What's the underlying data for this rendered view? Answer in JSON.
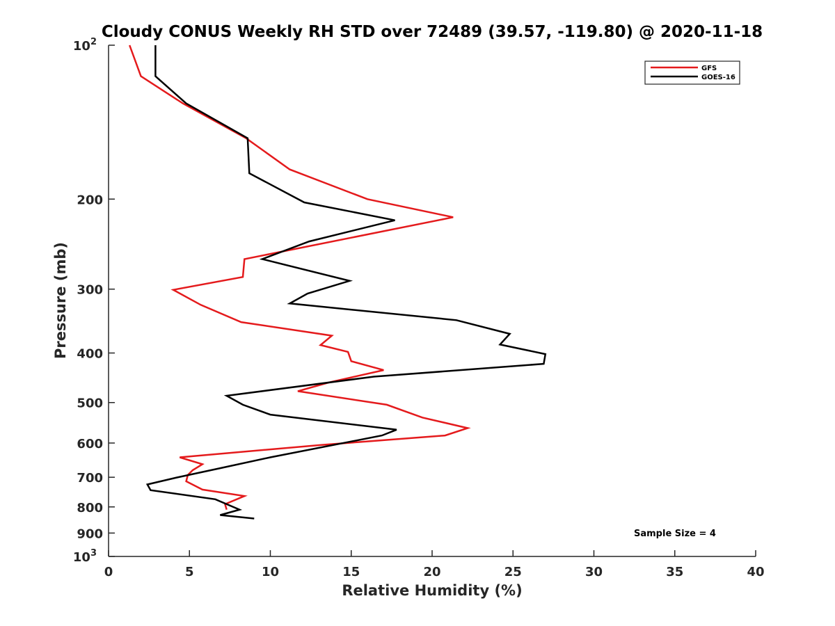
{
  "chart_data": {
    "type": "line",
    "title": "Cloudy CONUS Weekly RH STD over 72489 (39.57, -119.80) @ 2020-11-18",
    "xlabel": "Relative Humidity (%)",
    "ylabel": "Pressure (mb)",
    "xlim": [
      0,
      40
    ],
    "ylim": [
      100,
      1000
    ],
    "y_scale": "log",
    "y_reversed": true,
    "grid": false,
    "legend_position": "top-right",
    "x_ticks": [
      "0",
      "5",
      "10",
      "15",
      "20",
      "25",
      "30",
      "35",
      "40"
    ],
    "y_ticks": [
      {
        "value": 100,
        "base": "10",
        "exp": "2"
      },
      {
        "value": 200,
        "label": "200"
      },
      {
        "value": 300,
        "label": "300"
      },
      {
        "value": 400,
        "label": "400"
      },
      {
        "value": 500,
        "label": "500"
      },
      {
        "value": 600,
        "label": "600"
      },
      {
        "value": 700,
        "label": "700"
      },
      {
        "value": 800,
        "label": "800"
      },
      {
        "value": 900,
        "label": "900"
      },
      {
        "value": 1000,
        "base": "10",
        "exp": "3"
      }
    ],
    "series": [
      {
        "name": "GFS",
        "color": "#e41a1c",
        "points": [
          [
            1.3,
            100
          ],
          [
            2.0,
            115
          ],
          [
            4.6,
            130
          ],
          [
            8.5,
            152
          ],
          [
            11.2,
            175
          ],
          [
            16.0,
            200
          ],
          [
            21.3,
            217
          ],
          [
            8.4,
            262
          ],
          [
            8.3,
            284
          ],
          [
            4.0,
            301
          ],
          [
            5.7,
            322
          ],
          [
            8.2,
            348
          ],
          [
            13.8,
            370
          ],
          [
            13.1,
            386
          ],
          [
            14.8,
            398
          ],
          [
            15.0,
            415
          ],
          [
            17.0,
            432
          ],
          [
            13.6,
            457
          ],
          [
            11.7,
            475
          ],
          [
            17.2,
            505
          ],
          [
            19.4,
            535
          ],
          [
            22.2,
            561
          ],
          [
            20.8,
            580
          ],
          [
            13.2,
            605
          ],
          [
            4.4,
            640
          ],
          [
            5.8,
            660
          ],
          [
            5.2,
            678
          ],
          [
            4.9,
            693
          ],
          [
            4.8,
            713
          ],
          [
            5.8,
            740
          ],
          [
            8.4,
            762
          ],
          [
            7.2,
            790
          ],
          [
            7.3,
            810
          ]
        ]
      },
      {
        "name": "GOES-16",
        "color": "#000000",
        "points": [
          [
            2.9,
            100
          ],
          [
            2.9,
            115
          ],
          [
            4.8,
            130
          ],
          [
            8.6,
            152
          ],
          [
            8.7,
            178
          ],
          [
            12.1,
            203
          ],
          [
            17.7,
            220
          ],
          [
            12.4,
            242
          ],
          [
            9.5,
            262
          ],
          [
            14.9,
            289
          ],
          [
            12.3,
            306
          ],
          [
            11.2,
            320
          ],
          [
            21.5,
            345
          ],
          [
            24.8,
            367
          ],
          [
            24.2,
            385
          ],
          [
            27.0,
            402
          ],
          [
            26.9,
            420
          ],
          [
            16.4,
            445
          ],
          [
            7.3,
            485
          ],
          [
            8.3,
            505
          ],
          [
            10.0,
            528
          ],
          [
            17.8,
            565
          ],
          [
            16.9,
            580
          ],
          [
            10.0,
            640
          ],
          [
            6.9,
            672
          ],
          [
            4.3,
            700
          ],
          [
            2.4,
            723
          ],
          [
            2.6,
            742
          ],
          [
            6.6,
            773
          ],
          [
            8.1,
            810
          ],
          [
            6.9,
            830
          ],
          [
            9.0,
            843
          ]
        ]
      }
    ],
    "annotation": "Sample Size = 4"
  }
}
